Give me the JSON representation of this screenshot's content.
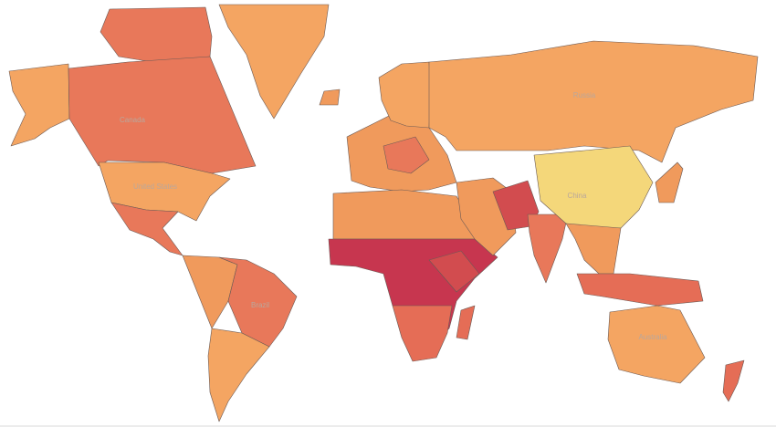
{
  "map": {
    "labels": [
      "Canada",
      "United States",
      "Brazil",
      "Russia",
      "China",
      "Australia"
    ],
    "colors": [
      "#f4a562",
      "#e8785a",
      "#c7364f",
      "#d24c4f",
      "#f4d77a",
      "#f09a5c",
      "#e56d56"
    ]
  }
}
